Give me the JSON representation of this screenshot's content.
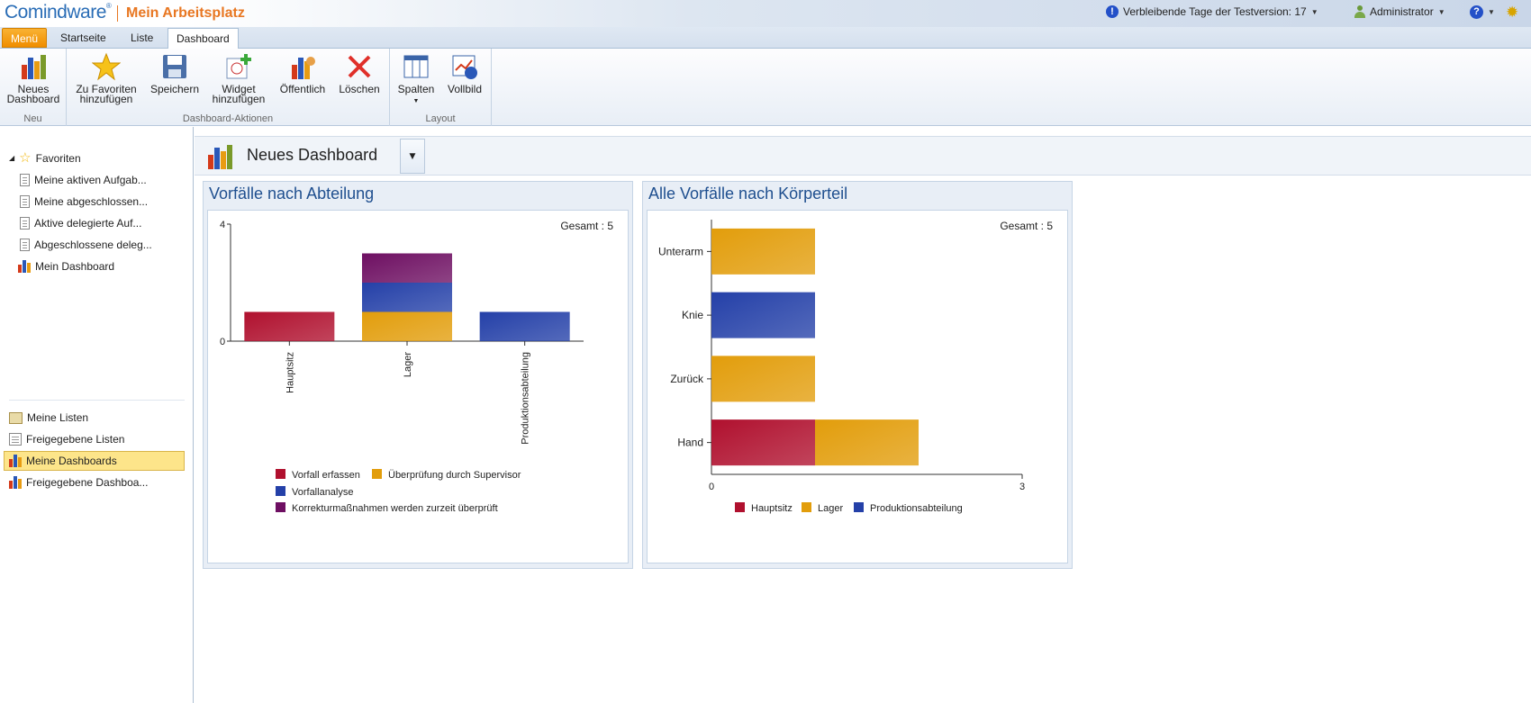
{
  "header": {
    "logo": "Comindware",
    "logo_mark": "®",
    "workspace": "Mein Arbeitsplatz",
    "trial_text": "Verbleibende Tage der Testversion: 17",
    "user": "Administrator"
  },
  "tabs": [
    "Menü",
    "Startseite",
    "Liste",
    "Dashboard"
  ],
  "ribbon": {
    "groups": [
      "Neu",
      "Dashboard-Aktionen",
      "Layout"
    ],
    "buttons": {
      "new_dashboard": [
        "Neues",
        "Dashboard"
      ],
      "add_favorites": [
        "Zu Favoriten",
        "hinzufügen"
      ],
      "save": "Speichern",
      "add_widget": [
        "Widget",
        "hinzufügen"
      ],
      "public": "Öffentlich",
      "delete": "Löschen",
      "columns": "Spalten",
      "fullscreen": "Vollbild"
    }
  },
  "sidebar": {
    "favorites": "Favoriten",
    "favorite_items": [
      "Meine aktiven Aufgab...",
      "Meine abgeschlossen...",
      "Aktive delegierte Auf...",
      "Abgeschlossene deleg...",
      "Mein Dashboard"
    ],
    "items": [
      "Meine Listen",
      "Freigegebene Listen",
      "Meine Dashboards",
      "Freigegebene Dashboa..."
    ]
  },
  "dashboard": {
    "title": "Neues Dashboard"
  },
  "colors": {
    "red": "#b0102e",
    "orange": "#e29d0b",
    "blue": "#2440a8",
    "purple": "#6e0f62",
    "accent": "#e87722"
  },
  "chart_data": [
    {
      "type": "bar",
      "stacked": true,
      "title": "Vorfälle nach Abteilung",
      "total_label": "Gesamt : 5",
      "categories": [
        "Hauptsitz",
        "Lager",
        "Produktionsabteilung"
      ],
      "series": [
        {
          "name": "Vorfall erfassen",
          "color": "#b0102e",
          "values": [
            1,
            0,
            0
          ]
        },
        {
          "name": "Überprüfung durch Supervisor",
          "color": "#e29d0b",
          "values": [
            0,
            1,
            0
          ]
        },
        {
          "name": "Vorfallanalyse",
          "color": "#2440a8",
          "values": [
            0,
            1,
            1
          ]
        },
        {
          "name": "Korrekturmaßnahmen werden zurzeit überprüft",
          "color": "#6e0f62",
          "values": [
            0,
            1,
            0
          ]
        }
      ],
      "ylim": [
        0,
        4
      ],
      "yticks": [
        "4",
        "0"
      ],
      "grid": false,
      "legend": "bottom"
    },
    {
      "type": "bar",
      "orientation": "horizontal",
      "stacked": true,
      "title": "Alle Vorfälle nach Körperteil",
      "total_label": "Gesamt : 5",
      "categories": [
        "Unterarm",
        "Knie",
        "Zurück",
        "Hand"
      ],
      "series": [
        {
          "name": "Hauptsitz",
          "color": "#b0102e",
          "values": [
            0,
            0,
            0,
            1
          ]
        },
        {
          "name": "Lager",
          "color": "#e29d0b",
          "values": [
            1,
            0,
            1,
            1
          ]
        },
        {
          "name": "Produktionsabteilung",
          "color": "#2440a8",
          "values": [
            0,
            1,
            0,
            0
          ]
        }
      ],
      "xlim": [
        0,
        3
      ],
      "xticks": [
        "0",
        "3"
      ],
      "grid": false,
      "legend": "bottom"
    }
  ]
}
